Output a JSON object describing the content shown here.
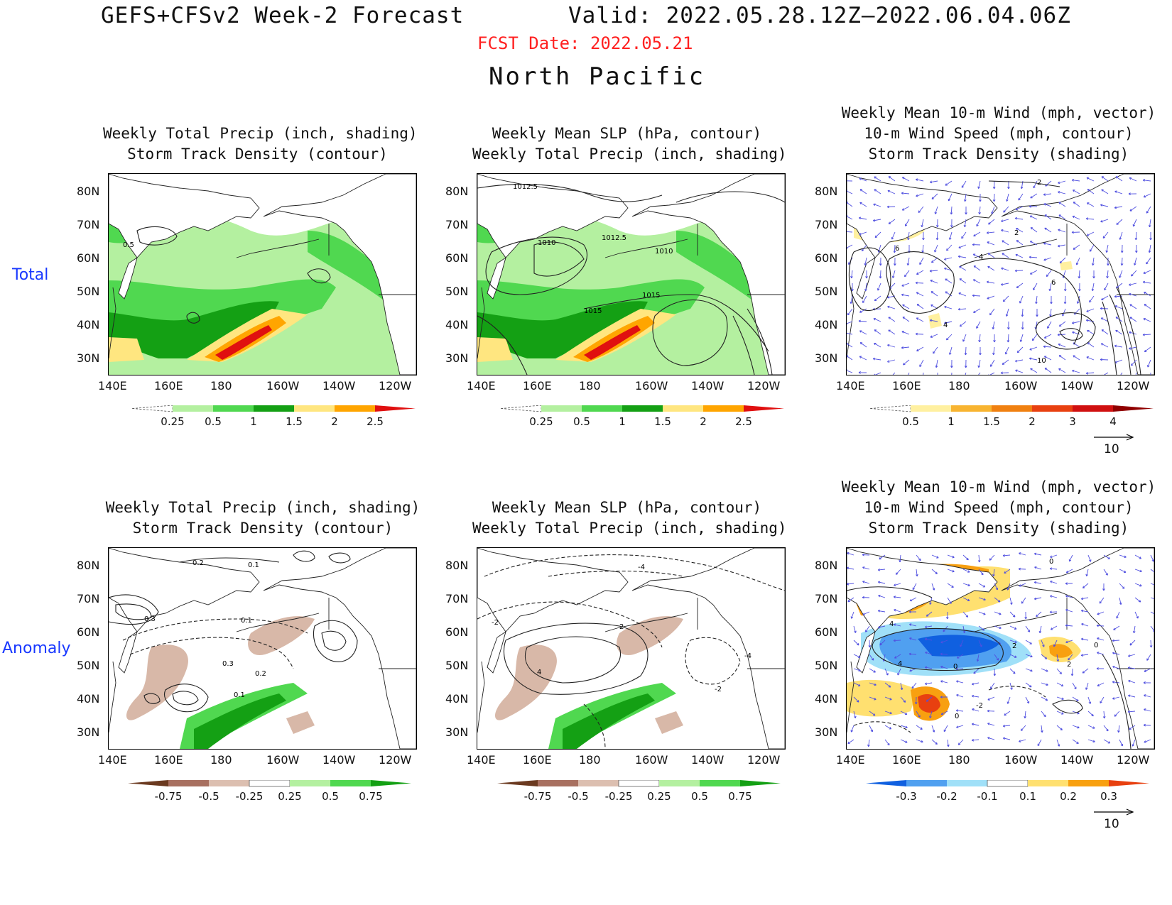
{
  "header": {
    "title": "GEFS+CFSv2 Week-2 Forecast",
    "valid": "Valid: 2022.05.28.12Z–2022.06.04.06Z",
    "fcst_date": "FCST Date: 2022.05.21",
    "region": "North Pacific"
  },
  "rows": {
    "total": "Total",
    "anomaly": "Anomaly"
  },
  "axes": {
    "lat": [
      "80N",
      "70N",
      "60N",
      "50N",
      "40N",
      "30N"
    ],
    "lon": [
      "140E",
      "160E",
      "180",
      "160W",
      "140W",
      "120W"
    ]
  },
  "panels": {
    "p1": {
      "title1": "Weekly Total Precip (inch, shading)",
      "title2": "Storm Track Density (contour)"
    },
    "p2": {
      "title1": "Weekly Mean SLP (hPa, contour)",
      "title2": "Weekly Total Precip (inch, shading)"
    },
    "p3": {
      "title1": "Weekly Mean 10-m Wind (mph, vector)",
      "title2": "10-m Wind Speed (mph, contour)",
      "title3": "Storm Track Density (shading)"
    },
    "p4": {
      "title1": "Weekly Total Precip (inch, shading)",
      "title2": "Storm Track Density (contour)"
    },
    "p5": {
      "title1": "Weekly Mean SLP (hPa, contour)",
      "title2": "Weekly Total Precip (inch, shading)"
    },
    "p6": {
      "title1": "Weekly Mean 10-m Wind (mph, vector)",
      "title2": "10-m Wind Speed (mph, contour)",
      "title3": "Storm Track Density (shading)"
    }
  },
  "contour_labels": {
    "p1": [
      "0.5"
    ],
    "p2": [
      "1012.5",
      "1010",
      "1012.5",
      "1010",
      "1015",
      "1015"
    ],
    "p3": [
      "2",
      "2",
      "4",
      "6",
      "6",
      "4",
      "10"
    ],
    "p4": [
      "0.2",
      "0.1",
      "0.3",
      "0.1",
      "0.3",
      "0.2",
      "0.1"
    ],
    "p5": [
      "-4",
      "-2",
      "2",
      "4",
      "-4",
      "-2"
    ],
    "p6": [
      "0",
      "4",
      "0",
      "2",
      "0",
      "2",
      "4",
      "-2",
      "0"
    ]
  },
  "colorbars": {
    "precip_total": {
      "labels": [
        "0.25",
        "0.5",
        "1",
        "1.5",
        "2",
        "2.5"
      ],
      "colors": [
        "#ffffff",
        "#b4f0a0",
        "#50d850",
        "#14a014",
        "#ffe680",
        "#ffa500",
        "#e01010"
      ]
    },
    "track_total": {
      "labels": [
        "0.5",
        "1",
        "1.5",
        "2",
        "3",
        "4"
      ],
      "colors": [
        "#ffffff",
        "#fff0a0",
        "#f8b430",
        "#f08010",
        "#e84010",
        "#d01010",
        "#900000"
      ]
    },
    "precip_anom": {
      "labels": [
        "-0.75",
        "-0.5",
        "-0.25",
        "0.25",
        "0.5",
        "0.75"
      ],
      "colors": [
        "#6b3a20",
        "#a87060",
        "#dcbfb0",
        "#ffffff",
        "#b4f0a0",
        "#50d850",
        "#14a014"
      ]
    },
    "track_anom": {
      "labels": [
        "-0.3",
        "-0.2",
        "-0.1",
        "0.1",
        "0.2",
        "0.3"
      ],
      "colors": [
        "#1060e0",
        "#50a0f0",
        "#a0e0f8",
        "#ffffff",
        "#ffe070",
        "#f8a010",
        "#e84010"
      ]
    }
  },
  "vector_reference": {
    "total": "10",
    "anomaly": "10"
  },
  "colors": {
    "precip_light": "#b4f0a0",
    "precip_mid": "#50d850",
    "precip_dark": "#14a014",
    "precip_yellow": "#ffe680",
    "precip_orange": "#ffa500",
    "precip_red": "#e01010",
    "dry_anom": "#d8b8a8",
    "vector": "#5050e0",
    "title_red": "#ff2020",
    "row_label": "#1838ff"
  }
}
